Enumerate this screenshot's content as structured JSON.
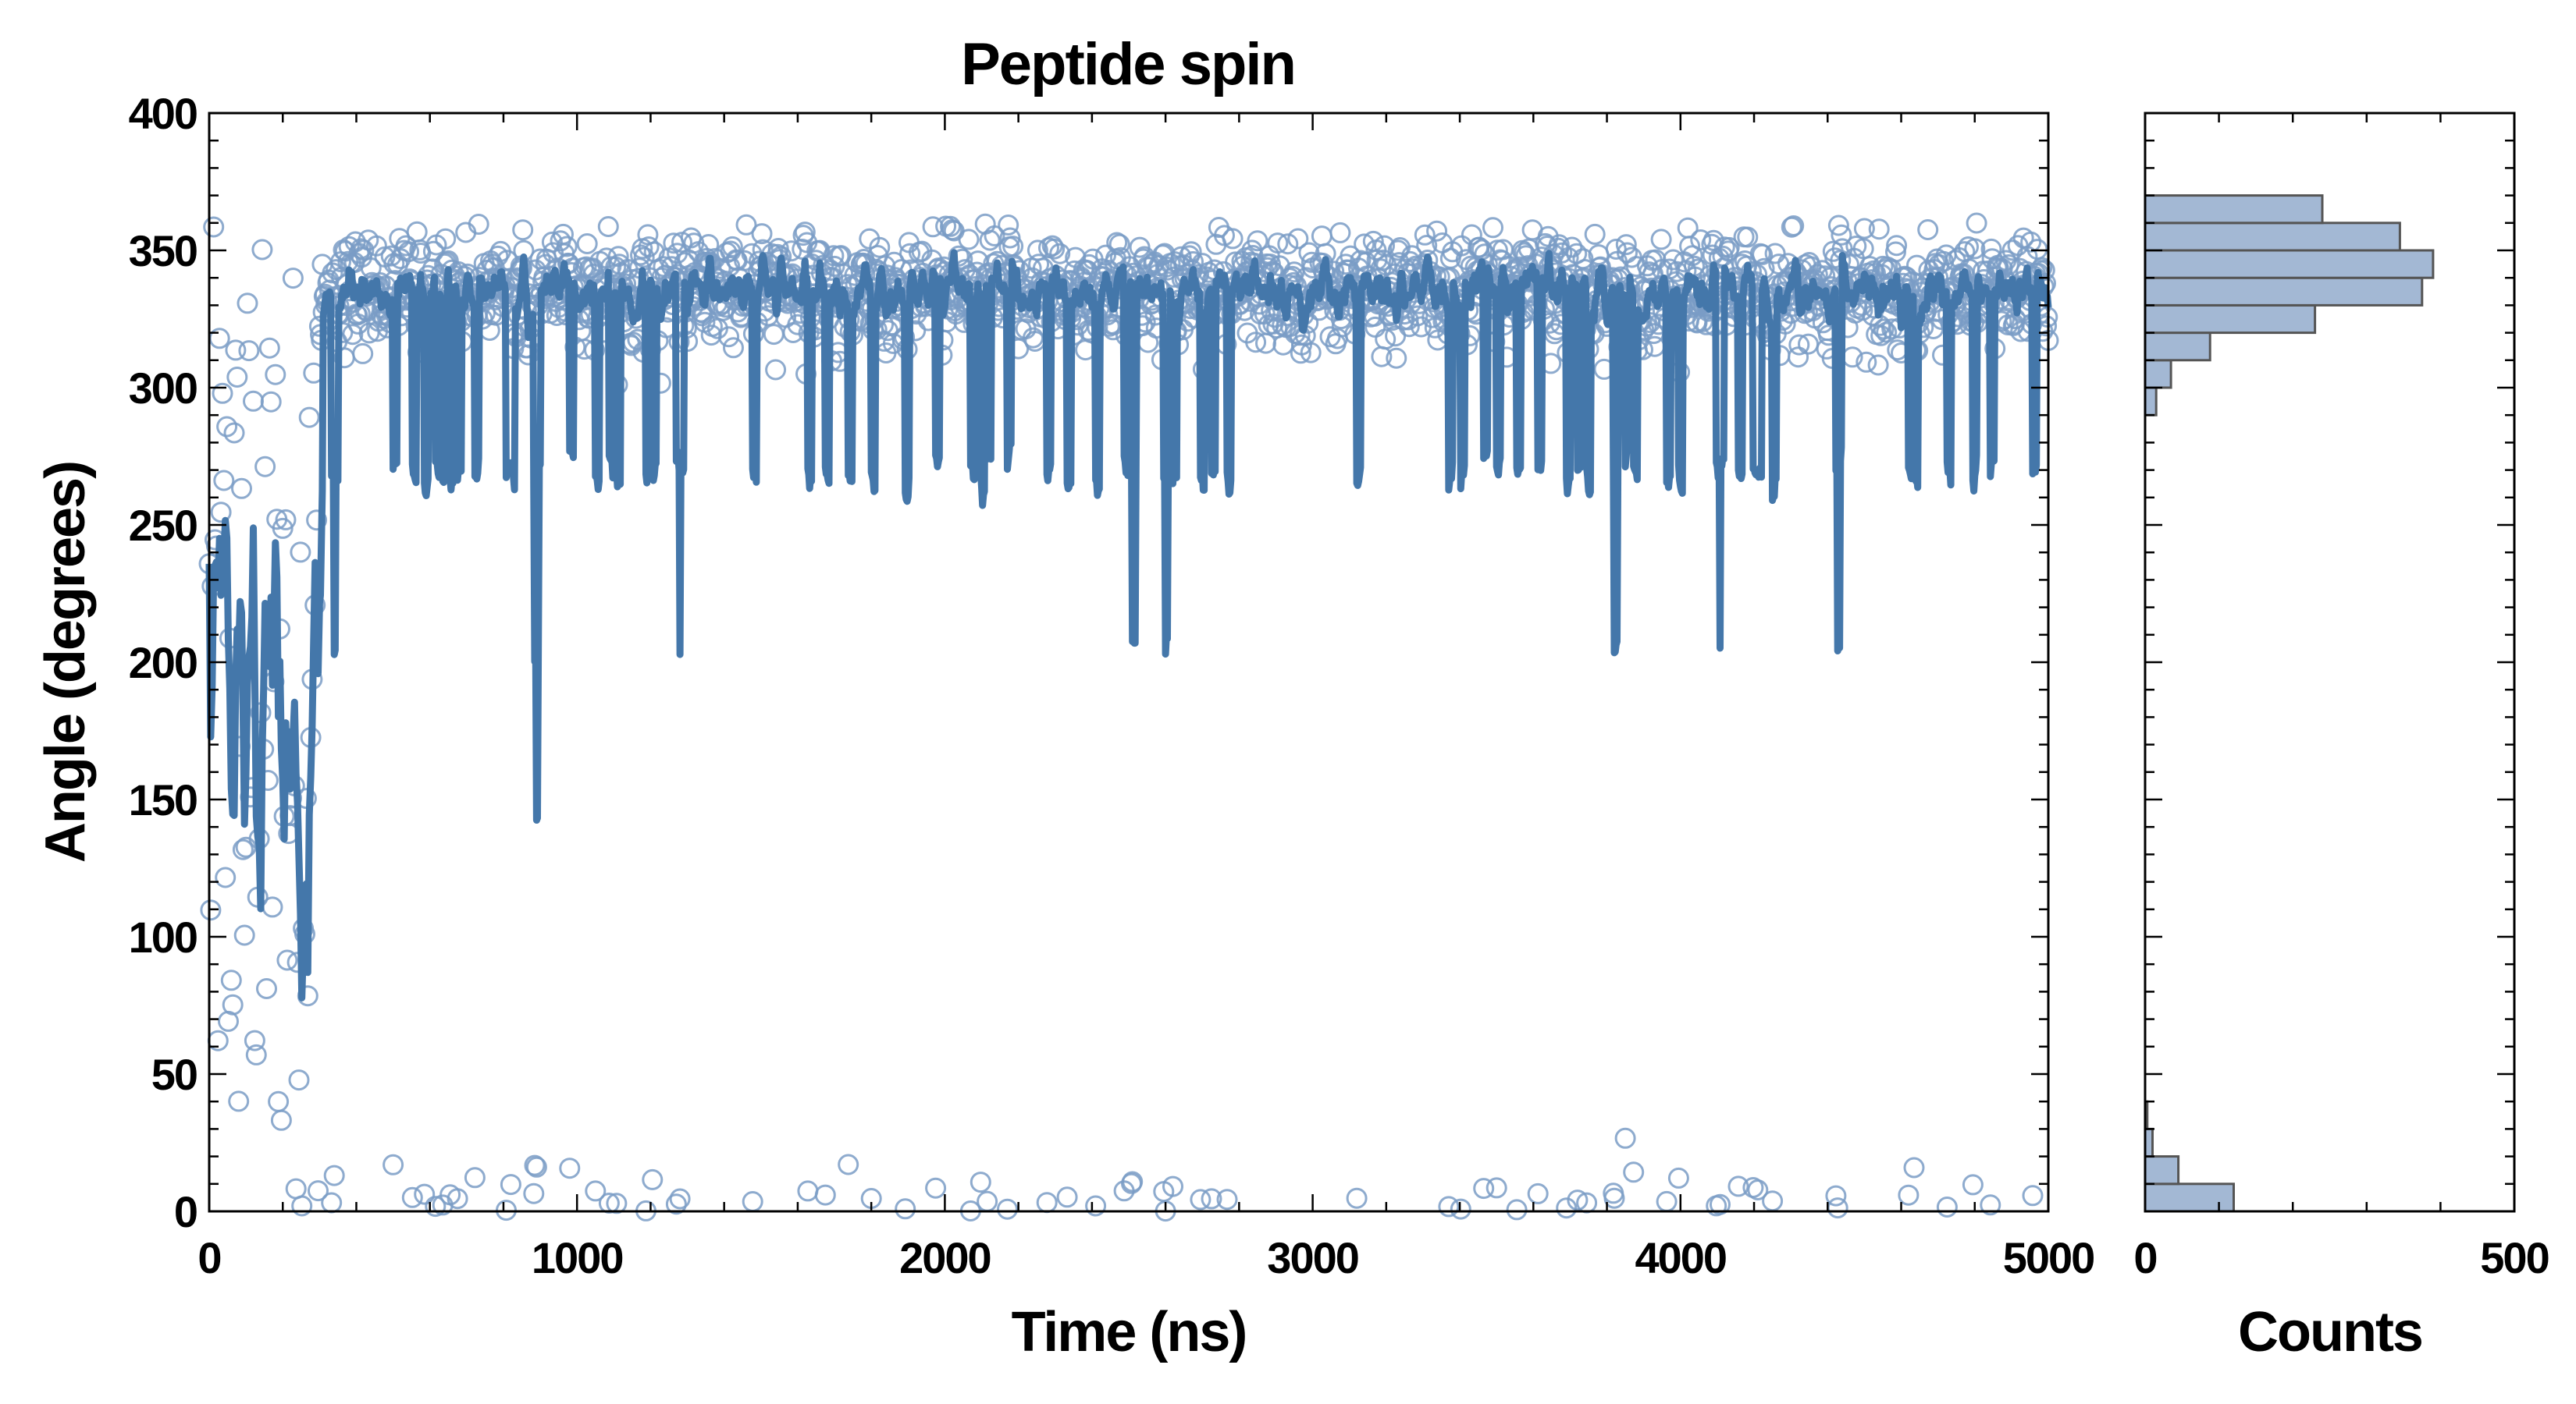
{
  "chart_data": [
    {
      "type": "scatter",
      "title": "Peptide spin",
      "xlabel": "Time (ns)",
      "ylabel": "Angle (degrees)",
      "xlim": [
        0,
        5000
      ],
      "ylim": [
        0,
        400
      ],
      "xticks": [
        "0",
        "1000",
        "2000",
        "3000",
        "4000",
        "5000"
      ],
      "yticks": [
        "0",
        "50",
        "100",
        "150",
        "200",
        "250",
        "300",
        "350",
        "400"
      ],
      "series": [
        {
          "kind": "markers",
          "marker": "open-circle",
          "color": "#7a9cc6"
        },
        {
          "kind": "running-average-line",
          "color": "#4477aa"
        }
      ],
      "description_of_data": {
        "transition_time": 300,
        "early_phase": {
          "x": [
            0,
            300
          ],
          "angle_range": [
            0,
            360
          ]
        },
        "plateau": {
          "x": [
            300,
            5000
          ],
          "center": 335,
          "spread": 20,
          "min": 300,
          "max": 360
        },
        "near_zero_outliers": {
          "angle_range": [
            0,
            40
          ]
        }
      }
    },
    {
      "type": "bar",
      "orientation": "horizontal",
      "xlabel": "Counts",
      "xlim": [
        0,
        500
      ],
      "xticks": [
        "0",
        "500"
      ],
      "ylim": [
        0,
        400
      ],
      "bin_width": 10,
      "bins": [
        {
          "y": [
            0,
            10
          ],
          "count": 120
        },
        {
          "y": [
            10,
            20
          ],
          "count": 45
        },
        {
          "y": [
            20,
            30
          ],
          "count": 10
        },
        {
          "y": [
            30,
            40
          ],
          "count": 3
        },
        {
          "y": [
            290,
            300
          ],
          "count": 15
        },
        {
          "y": [
            300,
            310
          ],
          "count": 35
        },
        {
          "y": [
            310,
            320
          ],
          "count": 88
        },
        {
          "y": [
            320,
            330
          ],
          "count": 230
        },
        {
          "y": [
            330,
            340
          ],
          "count": 375
        },
        {
          "y": [
            340,
            350
          ],
          "count": 390
        },
        {
          "y": [
            350,
            360
          ],
          "count": 345
        },
        {
          "y": [
            360,
            370
          ],
          "count": 240
        }
      ],
      "color": "#a3b8d4",
      "edge_color": "#555555"
    }
  ]
}
